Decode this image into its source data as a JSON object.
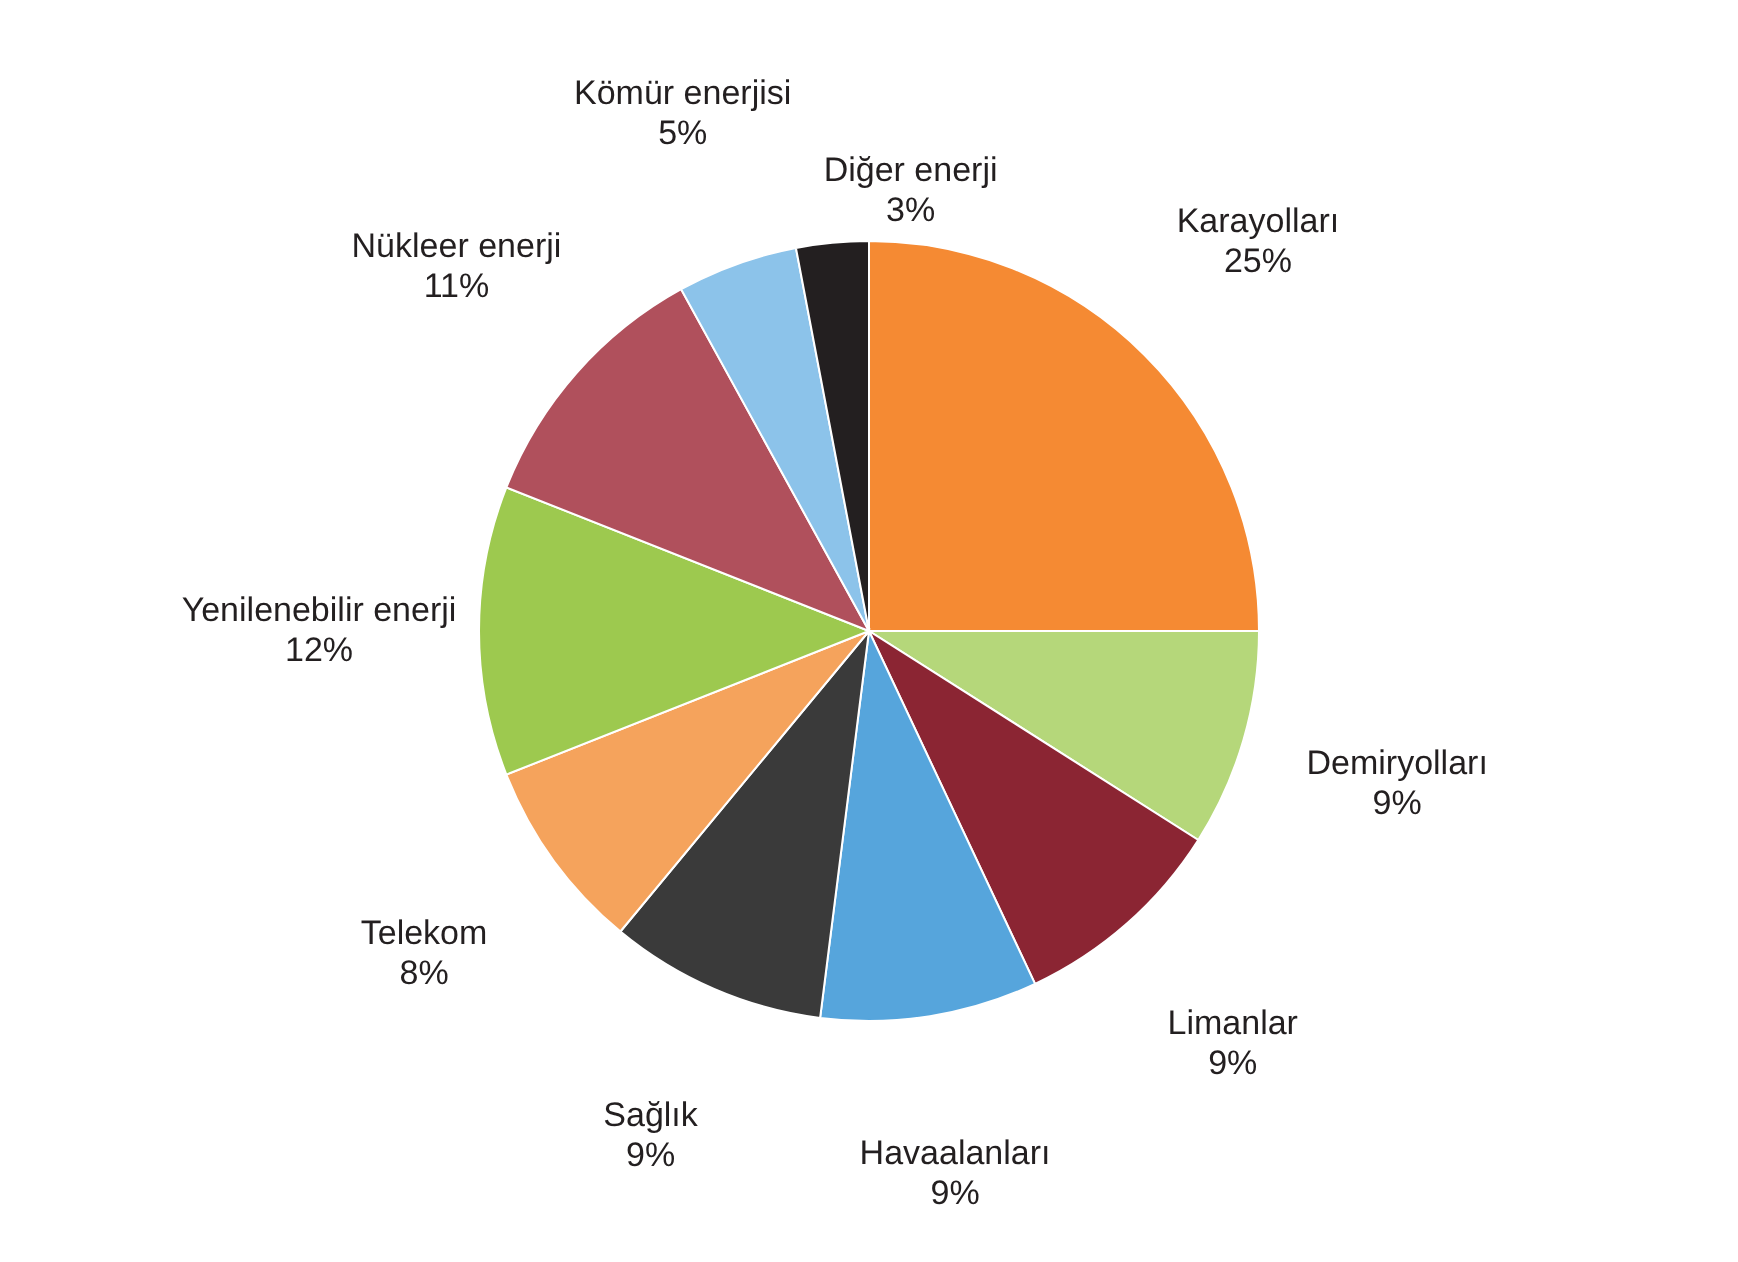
{
  "chart_data": {
    "type": "pie",
    "categories": [
      "Karayolları",
      "Demiryolları",
      "Limanlar",
      "Havaalanları",
      "Sağlık",
      "Telekom",
      "Yenilenebilir enerji",
      "Nükleer enerji",
      "Kömür enerjisi",
      "Diğer enerji"
    ],
    "values": [
      25,
      9,
      9,
      9,
      9,
      8,
      12,
      11,
      5,
      3
    ],
    "value_labels": [
      "25%",
      "9%",
      "9%",
      "9%",
      "9%",
      "8%",
      "12%",
      "11%",
      "5%",
      "3%"
    ],
    "colors": [
      "#f58a33",
      "#b5d77a",
      "#8b2533",
      "#56a5dc",
      "#3a3a3a",
      "#f5a35c",
      "#9dc94f",
      "#b0505c",
      "#8cc3ea",
      "#231f20"
    ],
    "legend": false
  }
}
